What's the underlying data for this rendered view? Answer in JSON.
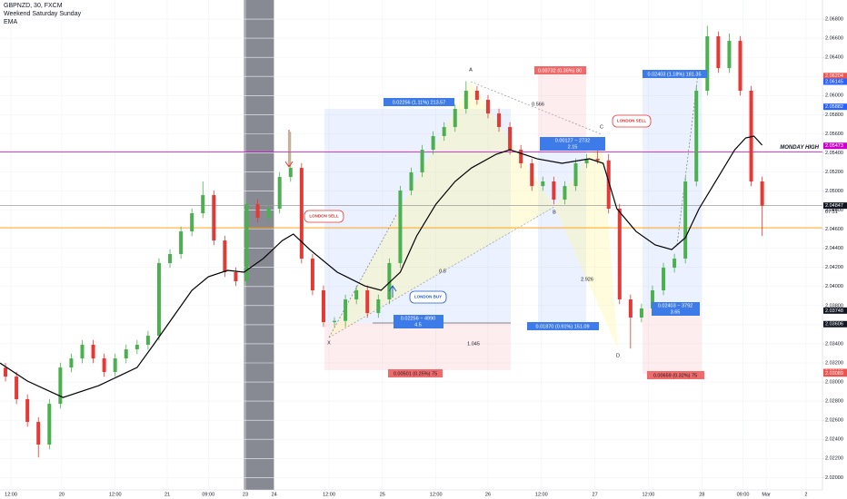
{
  "chart_data": {
    "type": "candlestick",
    "title": "GBPNZD, 30, FXCM",
    "indicators": [
      "Weekend Saturday Sunday",
      "EMA"
    ],
    "xlim": [
      0,
      300
    ],
    "ylim": [
      2.0187,
      2.07
    ],
    "grid": true,
    "up_color": "#4caf50",
    "down_color": "#e53935",
    "xticks": [
      {
        "value": 4,
        "label": "12:00"
      },
      {
        "value": 22.5,
        "label": "20"
      },
      {
        "value": 42,
        "label": "12:00"
      },
      {
        "value": 61,
        "label": "21"
      },
      {
        "value": 76,
        "label": "09:00"
      },
      {
        "value": 89.5,
        "label": "23"
      },
      {
        "value": 100,
        "label": "24"
      },
      {
        "value": 120,
        "label": "12:00"
      },
      {
        "value": 139.5,
        "label": "25"
      },
      {
        "value": 159,
        "label": "12:00"
      },
      {
        "value": 178,
        "label": "26"
      },
      {
        "value": 197.5,
        "label": "12:00"
      },
      {
        "value": 217,
        "label": "27"
      },
      {
        "value": 236.5,
        "label": "12:00"
      },
      {
        "value": 256,
        "label": "28"
      },
      {
        "value": 271,
        "label": "09:00"
      },
      {
        "value": 279.5,
        "label": "Mar"
      },
      {
        "value": 294,
        "label": "2"
      }
    ],
    "yticks": [
      {
        "value": 2.02,
        "label": "2.02000"
      },
      {
        "value": 2.022,
        "label": "2.02200"
      },
      {
        "value": 2.024,
        "label": "2.02400"
      },
      {
        "value": 2.026,
        "label": "2.02600"
      },
      {
        "value": 2.028,
        "label": "2.02800"
      },
      {
        "value": 2.03,
        "label": "2.03000"
      },
      {
        "value": 2.032,
        "label": "2.03200"
      },
      {
        "value": 2.034,
        "label": "2.03400"
      },
      {
        "value": 2.036,
        "label": "2.03600"
      },
      {
        "value": 2.038,
        "label": "2.03800"
      },
      {
        "value": 2.04,
        "label": "2.04000"
      },
      {
        "value": 2.042,
        "label": "2.04200"
      },
      {
        "value": 2.044,
        "label": "2.04400"
      },
      {
        "value": 2.046,
        "label": "2.04600"
      },
      {
        "value": 2.048,
        "label": "2.04800"
      },
      {
        "value": 2.05,
        "label": "2.05000"
      },
      {
        "value": 2.052,
        "label": "2.05200"
      },
      {
        "value": 2.054,
        "label": "2.05400"
      },
      {
        "value": 2.056,
        "label": "2.05600"
      },
      {
        "value": 2.058,
        "label": "2.05800"
      },
      {
        "value": 2.06,
        "label": "2.06000"
      },
      {
        "value": 2.062,
        "label": "2.06200"
      },
      {
        "value": 2.064,
        "label": "2.06400"
      },
      {
        "value": 2.066,
        "label": "2.06600"
      },
      {
        "value": 2.068,
        "label": "2.06800"
      }
    ],
    "weekend_band": [
      89,
      100
    ],
    "candles": {
      "x": [
        2,
        6,
        10,
        14,
        18,
        22,
        26,
        30,
        34,
        38,
        42,
        46,
        50,
        54,
        58,
        62,
        66,
        70,
        74,
        78,
        82,
        86,
        90,
        94,
        98,
        102,
        106,
        110,
        114,
        118,
        122,
        126,
        130,
        134,
        138,
        142,
        146,
        150,
        154,
        158,
        162,
        166,
        170,
        174,
        178,
        182,
        186,
        190,
        194,
        198,
        202,
        206,
        210,
        214,
        218,
        222,
        226,
        230,
        234,
        238,
        242,
        246,
        250,
        254,
        258,
        262,
        266,
        270,
        274,
        278
      ],
      "open": [
        2.0315,
        2.03057,
        2.0282,
        2.02582,
        2.02345,
        2.02772,
        2.03152,
        2.03247,
        2.0339,
        2.03247,
        2.03105,
        2.03247,
        2.03342,
        2.0339,
        2.03485,
        2.04245,
        2.0434,
        2.04577,
        2.04767,
        2.04957,
        2.04482,
        2.0415,
        2.04055,
        2.04862,
        2.0472,
        2.04815,
        2.05147,
        2.05242,
        2.04292,
        2.0396,
        2.03627,
        2.0364,
        2.03865,
        2.0396,
        2.03722,
        2.03865,
        2.04245,
        2.05005,
        2.05195,
        2.05432,
        2.05575,
        2.0567,
        2.0586,
        2.0605,
        2.05955,
        2.05812,
        2.0567,
        2.05432,
        2.0529,
        2.05052,
        2.051,
        2.0491,
        2.05052,
        2.0529,
        2.05337,
        2.0532,
        2.04815,
        2.03865,
        2.03675,
        2.0377,
        2.0396,
        2.04197,
        2.04292,
        2.051,
        2.0605,
        2.0662,
        2.06287,
        2.06572,
        2.0605,
        2.051
      ],
      "high": [
        2.032,
        2.03107,
        2.0287,
        2.02632,
        2.02822,
        2.03202,
        2.03297,
        2.0344,
        2.0344,
        2.03297,
        2.03297,
        2.03392,
        2.0344,
        2.03535,
        2.04295,
        2.0439,
        2.04627,
        2.04817,
        2.051,
        2.05007,
        2.04532,
        2.042,
        2.04912,
        2.04912,
        2.04865,
        2.05197,
        2.0562,
        2.05292,
        2.04342,
        2.0401,
        2.03677,
        2.03915,
        2.0401,
        2.0401,
        2.03915,
        2.04295,
        2.05055,
        2.05245,
        2.05482,
        2.05625,
        2.0572,
        2.0591,
        2.0615,
        2.061,
        2.06005,
        2.05862,
        2.0572,
        2.05482,
        2.0534,
        2.0515,
        2.0515,
        2.05102,
        2.0534,
        2.05387,
        2.055,
        2.05387,
        2.04865,
        2.03915,
        2.0382,
        2.0401,
        2.04247,
        2.04342,
        2.0515,
        2.061,
        2.0673,
        2.0667,
        2.0665,
        2.06622,
        2.061,
        2.0515
      ],
      "low": [
        2.03007,
        2.0277,
        2.02532,
        2.0221,
        2.02295,
        2.02722,
        2.03102,
        2.03197,
        2.03197,
        2.03055,
        2.03055,
        2.03197,
        2.03292,
        2.0334,
        2.03435,
        2.04195,
        2.0429,
        2.04527,
        2.04717,
        2.04432,
        2.041,
        2.04005,
        2.04005,
        2.0467,
        2.0467,
        2.04765,
        2.05097,
        2.04242,
        2.0391,
        2.03577,
        2.03577,
        2.03577,
        2.03815,
        2.03672,
        2.03672,
        2.03815,
        2.04195,
        2.04955,
        2.05145,
        2.05382,
        2.05525,
        2.0562,
        2.0581,
        2.05905,
        2.05762,
        2.0562,
        2.05382,
        2.0524,
        2.05002,
        2.05002,
        2.0486,
        2.0486,
        2.05002,
        2.0524,
        2.05287,
        2.04765,
        2.03815,
        2.0335,
        2.03625,
        2.0372,
        2.0391,
        2.04147,
        2.04242,
        2.0505,
        2.06,
        2.06237,
        2.06237,
        2.06,
        2.0505,
        2.0453
      ],
      "close": [
        2.03057,
        2.0282,
        2.02582,
        2.02345,
        2.02772,
        2.03152,
        2.03247,
        2.0339,
        2.03247,
        2.03105,
        2.03247,
        2.03342,
        2.0339,
        2.03485,
        2.04245,
        2.0434,
        2.04577,
        2.04767,
        2.04957,
        2.04482,
        2.0415,
        2.04055,
        2.04862,
        2.0472,
        2.04815,
        2.05147,
        2.05242,
        2.04292,
        2.0396,
        2.03627,
        2.0364,
        2.03865,
        2.0396,
        2.03722,
        2.03865,
        2.04245,
        2.05005,
        2.05195,
        2.05432,
        2.05575,
        2.0567,
        2.0586,
        2.0605,
        2.05955,
        2.05812,
        2.0567,
        2.05432,
        2.0529,
        2.05052,
        2.051,
        2.0491,
        2.05052,
        2.0529,
        2.05337,
        2.0532,
        2.04815,
        2.03865,
        2.03675,
        2.0377,
        2.0396,
        2.04197,
        2.04292,
        2.051,
        2.0605,
        2.0662,
        2.06287,
        2.06572,
        2.0605,
        2.051,
        2.04847
      ]
    },
    "ema": {
      "color": "#000000",
      "x": [
        0,
        10,
        23,
        36,
        50,
        56,
        63,
        70,
        76,
        83,
        89,
        96,
        103,
        107,
        113,
        123,
        133,
        139,
        146,
        152,
        159,
        166,
        172,
        181,
        186,
        196,
        205,
        215,
        220,
        225,
        232,
        239,
        245,
        250,
        255,
        262,
        268,
        272,
        275,
        278
      ],
      "values": [
        2.03199,
        2.0301,
        2.02838,
        2.02962,
        2.03152,
        2.0339,
        2.03675,
        2.0396,
        2.04102,
        2.04169,
        2.0415,
        2.04292,
        2.04482,
        2.04549,
        2.04387,
        2.0415,
        2.04007,
        2.0396,
        2.0415,
        2.0453,
        2.04862,
        2.051,
        2.05242,
        2.05385,
        2.05432,
        2.05337,
        2.0529,
        2.05337,
        2.0529,
        2.04815,
        2.04577,
        2.04435,
        2.04387,
        2.04511,
        2.04815,
        2.05147,
        2.05432,
        2.05556,
        2.05575,
        2.0548
      ]
    },
    "hlines": [
      {
        "value": 2.0541,
        "color": "#cc00cc",
        "label": "MONDAY HIGH"
      },
      {
        "value": 2.04615,
        "color": "#ff9800"
      },
      {
        "value": 2.04847,
        "color": "#9e9e9e"
      }
    ],
    "price_labels": [
      {
        "value": 2.06204,
        "label": "2.06204",
        "color": "#ef5350"
      },
      {
        "value": 2.06145,
        "label": "2.06145",
        "color": "#2962ff"
      },
      {
        "value": 2.05882,
        "label": "2.05882",
        "color": "#2962ff"
      },
      {
        "value": 2.05473,
        "label": "2.05473",
        "color": "#cc00cc"
      },
      {
        "value": 2.04847,
        "label": "2.04847",
        "color": "#131722"
      },
      {
        "value": 2.03748,
        "label": "2.03748",
        "color": "#131722"
      },
      {
        "value": 2.03606,
        "label": "2.03606",
        "color": "#131722"
      },
      {
        "value": 2.03105,
        "label": "2.03105",
        "color": "#ef5350"
      },
      {
        "value": 2.03089,
        "label": "2.03089",
        "color": "#ef5350"
      }
    ],
    "countdown": "07:51",
    "annotations": [
      "0.00732 (0.36%) 80",
      "0.02256 (1.11%) 213.57",
      "0.02403 (1.18%) 181.35",
      "0.566",
      "A",
      "B",
      "C",
      "D",
      "X",
      "LONDON SELL",
      "LONDON SELL",
      "LONDON BUY",
      "0.00127 − 2732",
      "2.15",
      "0.5",
      "2.926",
      "1.045",
      "0.02256 − 4990",
      "4.5",
      "0.01870 (0.91%) 151.09",
      "0.00501 (0.25%) 75",
      "0.02403 − 3792",
      "3.65",
      "0.00659 (0.32%) 75"
    ]
  }
}
